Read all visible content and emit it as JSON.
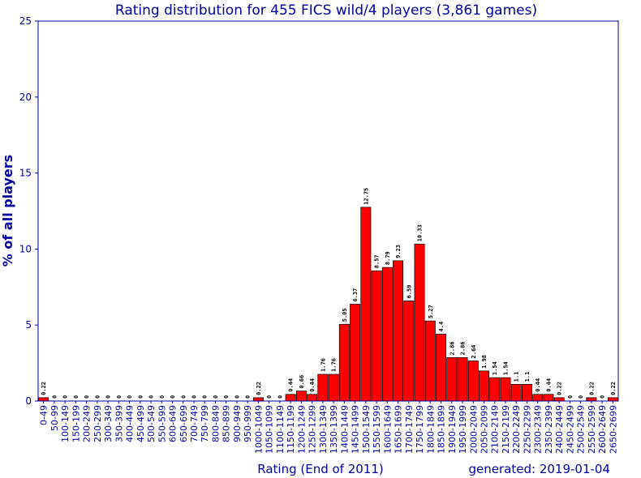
{
  "chart_data": {
    "type": "bar",
    "title": "Rating distribution for 455 FICS wild/4 players (3,861 games)",
    "xlabel": "Rating (End of 2011)",
    "ylabel": "% of all players",
    "footer": "generated: 2019-01-04",
    "ylim": [
      0,
      25
    ],
    "yticks": [
      0,
      5,
      10,
      15,
      20,
      25
    ],
    "grid": false,
    "bar_color": "#ff0000",
    "text_color": "#0000a0",
    "categories": [
      "0-49",
      "50-99",
      "100-149",
      "150-199",
      "200-249",
      "250-299",
      "300-349",
      "350-399",
      "400-449",
      "450-499",
      "500-549",
      "550-599",
      "600-649",
      "650-699",
      "700-749",
      "750-799",
      "800-849",
      "850-899",
      "900-949",
      "950-999",
      "1000-1049",
      "1050-1099",
      "1100-1149",
      "1150-1199",
      "1200-1249",
      "1250-1299",
      "1300-1349",
      "1350-1399",
      "1400-1449",
      "1450-1499",
      "1500-1549",
      "1550-1599",
      "1600-1649",
      "1650-1699",
      "1700-1749",
      "1750-1799",
      "1800-1849",
      "1850-1899",
      "1900-1949",
      "1950-1999",
      "2000-2049",
      "2050-2099",
      "2100-2149",
      "2150-2199",
      "2200-2249",
      "2250-2299",
      "2300-2349",
      "2350-2399",
      "2400-2449",
      "2450-2499",
      "2500-2549",
      "2550-2599",
      "2600-2649",
      "2650-2699"
    ],
    "values": [
      0.22,
      0,
      0,
      0,
      0,
      0,
      0,
      0,
      0,
      0,
      0,
      0,
      0,
      0,
      0,
      0,
      0,
      0,
      0,
      0,
      0.22,
      0,
      0,
      0.44,
      0.66,
      0.44,
      1.76,
      1.76,
      5.05,
      6.37,
      12.75,
      8.57,
      8.79,
      9.23,
      6.59,
      10.33,
      5.27,
      4.4,
      2.86,
      2.86,
      2.64,
      1.98,
      1.54,
      1.54,
      1.1,
      1.1,
      0.44,
      0.44,
      0.22,
      0,
      0,
      0.22,
      0,
      0.22
    ],
    "data_labels": [
      "0.22",
      "0",
      "0",
      "0",
      "0",
      "0",
      "0",
      "0",
      "0",
      "0",
      "0",
      "0",
      "0",
      "0",
      "0",
      "0",
      "0",
      "0",
      "0",
      "0",
      "0.22",
      "0",
      "0",
      "0.44",
      "0.66",
      "0.44",
      "1.76",
      "1.76",
      "5.05",
      "6.37",
      "12.75",
      "8.57",
      "8.79",
      "9.23",
      "6.59",
      "10.33",
      "5.27",
      "4.4",
      "2.86",
      "2.86",
      "2.64",
      "1.98",
      "1.54",
      "1.54",
      "1.1",
      "1.1",
      "0.44",
      "0.44",
      "0.22",
      "0",
      "0",
      "0.22",
      "0",
      "0.22"
    ]
  }
}
